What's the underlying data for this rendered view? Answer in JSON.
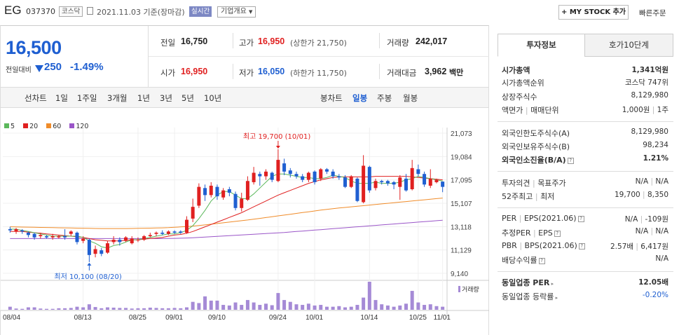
{
  "header": {
    "name": "EG",
    "code": "037370",
    "market": "코스닥",
    "date": "2021.11.03 기준(장마감)",
    "realtime": "실시간",
    "corp_info": "기업개요",
    "mystock": "+ MY STOCK 추가",
    "quick_order": "빠른주문"
  },
  "quote": {
    "price": "16,500",
    "change_label": "전일대비",
    "change": "250",
    "change_pct": "-1.49%",
    "prev_label": "전일",
    "prev": "16,750",
    "high_label": "고가",
    "high": "16,950",
    "upper_limit": "(상한가 21,750)",
    "volume_label": "거래량",
    "volume": "242,017",
    "open_label": "시가",
    "open": "16,950",
    "low_label": "저가",
    "low": "16,050",
    "lower_limit": "(하한가 11,750)",
    "amount_label": "거래대금",
    "amount": "3,962",
    "amount_unit": "백만"
  },
  "tabs": {
    "line_chart": "선차트",
    "periods": [
      "1일",
      "1주일",
      "3개월",
      "1년",
      "3년",
      "5년",
      "10년"
    ],
    "candle_chart": "봉차트",
    "candle_periods": [
      "일봉",
      "주봉",
      "월봉"
    ],
    "active_candle": "일봉"
  },
  "chart_data": {
    "type": "candlestick",
    "ma_legend": [
      {
        "name": "5",
        "color": "#5cb85c"
      },
      {
        "name": "20",
        "color": "#e02020"
      },
      {
        "name": "60",
        "color": "#f08c2a"
      },
      {
        "name": "120",
        "color": "#9a55c8"
      }
    ],
    "y_ticks": [
      "21,073",
      "19,084",
      "17,095",
      "15,107",
      "13,118",
      "11,129",
      "9,140"
    ],
    "ylim": [
      9140,
      21073
    ],
    "x_ticks": [
      "08/04",
      "08/13",
      "08/25",
      "09/01",
      "09/10",
      "09/24",
      "10/01",
      "10/14",
      "10/25",
      "11/01"
    ],
    "annotations": {
      "high": "최고 19,700 (10/01)",
      "low": "최저 10,100 (08/20)"
    },
    "volume_label": "거래량",
    "candles": [
      {
        "o": 12900,
        "c": 12800,
        "h": 13100,
        "l": 12600
      },
      {
        "o": 12700,
        "c": 12900,
        "h": 13000,
        "l": 12500
      },
      {
        "o": 12800,
        "c": 12700,
        "h": 12900,
        "l": 12500
      },
      {
        "o": 12600,
        "c": 12400,
        "h": 12700,
        "l": 12200
      },
      {
        "o": 12500,
        "c": 12200,
        "h": 12600,
        "l": 12000
      },
      {
        "o": 12300,
        "c": 12400,
        "h": 12600,
        "l": 12100
      },
      {
        "o": 12300,
        "c": 12200,
        "h": 12400,
        "l": 12100
      },
      {
        "o": 12200,
        "c": 12300,
        "h": 12500,
        "l": 12000
      },
      {
        "o": 12200,
        "c": 12300,
        "h": 12400,
        "l": 12100
      },
      {
        "o": 12300,
        "c": 12200,
        "h": 12900,
        "l": 12000
      },
      {
        "o": 12500,
        "c": 12700,
        "h": 12800,
        "l": 12300
      },
      {
        "o": 12600,
        "c": 11800,
        "h": 12700,
        "l": 11600
      },
      {
        "o": 11900,
        "c": 12100,
        "h": 12300,
        "l": 11700
      },
      {
        "o": 12000,
        "c": 10700,
        "h": 12100,
        "l": 10100
      },
      {
        "o": 10800,
        "c": 11200,
        "h": 11500,
        "l": 10500
      },
      {
        "o": 11100,
        "c": 10800,
        "h": 11300,
        "l": 10600
      },
      {
        "o": 10900,
        "c": 11700,
        "h": 11900,
        "l": 10800
      },
      {
        "o": 11800,
        "c": 12000,
        "h": 12300,
        "l": 11600
      },
      {
        "o": 12000,
        "c": 11800,
        "h": 12200,
        "l": 11500
      },
      {
        "o": 11900,
        "c": 12200,
        "h": 12300,
        "l": 11800
      },
      {
        "o": 11700,
        "c": 12100,
        "h": 12300,
        "l": 11600
      },
      {
        "o": 12000,
        "c": 12000,
        "h": 12200,
        "l": 11800
      },
      {
        "o": 12000,
        "c": 12300,
        "h": 12400,
        "l": 11900
      },
      {
        "o": 12300,
        "c": 12400,
        "h": 12600,
        "l": 12200
      },
      {
        "o": 12500,
        "c": 12600,
        "h": 12700,
        "l": 12300
      },
      {
        "o": 12600,
        "c": 12500,
        "h": 12800,
        "l": 12400
      },
      {
        "o": 12500,
        "c": 12700,
        "h": 12800,
        "l": 12400
      },
      {
        "o": 12700,
        "c": 12600,
        "h": 12800,
        "l": 12500
      },
      {
        "o": 12700,
        "c": 12600,
        "h": 12800,
        "l": 12500
      },
      {
        "o": 12600,
        "c": 13700,
        "h": 14000,
        "l": 12500
      },
      {
        "o": 13800,
        "c": 14800,
        "h": 15500,
        "l": 13500
      },
      {
        "o": 14900,
        "c": 16500,
        "h": 16800,
        "l": 14700
      },
      {
        "o": 16400,
        "c": 15800,
        "h": 16700,
        "l": 15300
      },
      {
        "o": 15800,
        "c": 16600,
        "h": 16900,
        "l": 15600
      },
      {
        "o": 16500,
        "c": 15700,
        "h": 16700,
        "l": 15400
      },
      {
        "o": 15600,
        "c": 16200,
        "h": 16400,
        "l": 15400
      },
      {
        "o": 16300,
        "c": 16000,
        "h": 16500,
        "l": 15700
      },
      {
        "o": 15900,
        "c": 14700,
        "h": 16100,
        "l": 14500
      },
      {
        "o": 14700,
        "c": 15500,
        "h": 16000,
        "l": 14400
      },
      {
        "o": 15400,
        "c": 17000,
        "h": 17400,
        "l": 15300
      },
      {
        "o": 16900,
        "c": 17700,
        "h": 18200,
        "l": 16700
      },
      {
        "o": 17600,
        "c": 17400,
        "h": 17800,
        "l": 16600
      },
      {
        "o": 17400,
        "c": 17800,
        "h": 18000,
        "l": 17100
      },
      {
        "o": 17700,
        "c": 17100,
        "h": 17800,
        "l": 16900
      },
      {
        "o": 17000,
        "c": 18800,
        "h": 19700,
        "l": 16900
      },
      {
        "o": 18500,
        "c": 17800,
        "h": 18900,
        "l": 17500
      },
      {
        "o": 17900,
        "c": 17600,
        "h": 18100,
        "l": 17300
      },
      {
        "o": 17600,
        "c": 17400,
        "h": 17800,
        "l": 17200
      },
      {
        "o": 17400,
        "c": 17100,
        "h": 17600,
        "l": 16900
      },
      {
        "o": 17100,
        "c": 17700,
        "h": 17800,
        "l": 16900
      },
      {
        "o": 17800,
        "c": 16900,
        "h": 17900,
        "l": 16700
      },
      {
        "o": 17200,
        "c": 18000,
        "h": 18100,
        "l": 17000
      },
      {
        "o": 18000,
        "c": 17800,
        "h": 18100,
        "l": 17600
      },
      {
        "o": 17800,
        "c": 17400,
        "h": 18000,
        "l": 17200
      },
      {
        "o": 17400,
        "c": 17300,
        "h": 17600,
        "l": 17100
      },
      {
        "o": 17300,
        "c": 16500,
        "h": 17500,
        "l": 16400
      },
      {
        "o": 16500,
        "c": 17400,
        "h": 17500,
        "l": 16400
      },
      {
        "o": 17200,
        "c": 15300,
        "h": 17300,
        "l": 15200
      },
      {
        "o": 15200,
        "c": 18300,
        "h": 19200,
        "l": 15100
      },
      {
        "o": 18200,
        "c": 16200,
        "h": 18300,
        "l": 16000
      },
      {
        "o": 16400,
        "c": 17000,
        "h": 17200,
        "l": 16200
      },
      {
        "o": 17000,
        "c": 16900,
        "h": 17100,
        "l": 16700
      },
      {
        "o": 17000,
        "c": 16800,
        "h": 17100,
        "l": 16600
      },
      {
        "o": 16900,
        "c": 16700,
        "h": 17000,
        "l": 16300
      },
      {
        "o": 16500,
        "c": 17300,
        "h": 17500,
        "l": 15400
      },
      {
        "o": 17200,
        "c": 16200,
        "h": 17600,
        "l": 16100
      },
      {
        "o": 16300,
        "c": 18100,
        "h": 18800,
        "l": 16200
      },
      {
        "o": 18000,
        "c": 17600,
        "h": 18400,
        "l": 17400
      },
      {
        "o": 17600,
        "c": 16700,
        "h": 17800,
        "l": 16500
      },
      {
        "o": 16600,
        "c": 17200,
        "h": 18000,
        "l": 16400
      },
      {
        "o": 16900,
        "c": 17100,
        "h": 17200,
        "l": 16800
      },
      {
        "o": 16950,
        "c": 16500,
        "h": 16950,
        "l": 16050
      }
    ],
    "volumes": [
      10,
      4,
      3,
      8,
      8,
      4,
      3,
      3,
      5,
      5,
      6,
      10,
      8,
      18,
      9,
      5,
      8,
      7,
      6,
      6,
      4,
      5,
      5,
      7,
      6,
      5,
      5,
      6,
      5,
      8,
      26,
      22,
      44,
      30,
      30,
      16,
      14,
      24,
      16,
      32,
      24,
      16,
      20,
      15,
      55,
      32,
      26,
      18,
      16,
      20,
      14,
      16,
      10,
      10,
      12,
      8,
      10,
      16,
      40,
      92,
      32,
      18,
      14,
      10,
      14,
      20,
      62,
      24,
      16,
      18,
      12,
      10
    ],
    "ma5": [
      12900,
      12900,
      12800,
      12700,
      12600,
      12500,
      12400,
      12300,
      12300,
      12300,
      12300,
      12300,
      12200,
      11900,
      11700,
      11400,
      11300,
      11500,
      11600,
      11800,
      12000,
      12000,
      12100,
      12200,
      12300,
      12400,
      12500,
      12500,
      12600,
      12800,
      13200,
      13800,
      14500,
      15300,
      15800,
      16100,
      16100,
      15800,
      15500,
      15500,
      15900,
      16400,
      16900,
      17400,
      17600,
      17600,
      17500,
      17400,
      17300,
      17300,
      17200,
      17200,
      17300,
      17500,
      17400,
      17300,
      17000,
      16800,
      16800,
      16800,
      16900,
      16800,
      16800,
      16800,
      16900,
      17100,
      17200,
      17400,
      17300,
      17200,
      17100,
      17000
    ],
    "ma20": [
      12700,
      12700,
      12700,
      12650,
      12600,
      12550,
      12500,
      12450,
      12400,
      12350,
      12300,
      12250,
      12200,
      12100,
      12000,
      11950,
      11900,
      11900,
      11900,
      11950,
      12000,
      12000,
      12050,
      12100,
      12150,
      12200,
      12300,
      12400,
      12450,
      12550,
      12700,
      12900,
      13100,
      13300,
      13500,
      13700,
      13900,
      14100,
      14300,
      14550,
      14800,
      15050,
      15300,
      15550,
      15800,
      16000,
      16200,
      16400,
      16600,
      16800,
      16950,
      17100,
      17200,
      17300,
      17350,
      17350,
      17350,
      17350,
      17350,
      17350,
      17400,
      17400,
      17400,
      17400,
      17400,
      17400,
      17350,
      17300,
      17250,
      17200,
      17150,
      17100
    ],
    "ma60": [
      13100,
      13090,
      13080,
      13070,
      13060,
      13050,
      13040,
      13030,
      13020,
      13010,
      13000,
      12990,
      12980,
      12970,
      12960,
      12950,
      12950,
      12950,
      12950,
      12950,
      12960,
      12970,
      12980,
      12990,
      13000,
      13010,
      13030,
      13060,
      13090,
      13120,
      13160,
      13210,
      13260,
      13320,
      13380,
      13440,
      13500,
      13560,
      13620,
      13680,
      13750,
      13820,
      13890,
      13960,
      14030,
      14100,
      14170,
      14240,
      14310,
      14380,
      14450,
      14520,
      14580,
      14640,
      14700,
      14750,
      14800,
      14850,
      14900,
      14950,
      15000,
      15050,
      15100,
      15150,
      15200,
      15250,
      15300,
      15350,
      15400,
      15450,
      15500,
      15550
    ],
    "ma120": [
      12100,
      12100,
      12100,
      12100,
      12100,
      12100,
      12100,
      12100,
      12100,
      12100,
      12100,
      12100,
      12100,
      12100,
      12100,
      12100,
      12100,
      12100,
      12100,
      12100,
      12100,
      12100,
      12100,
      12100,
      12100,
      12100,
      12110,
      12120,
      12130,
      12150,
      12170,
      12200,
      12230,
      12260,
      12290,
      12320,
      12350,
      12380,
      12410,
      12440,
      12470,
      12500,
      12530,
      12560,
      12590,
      12620,
      12660,
      12700,
      12740,
      12780,
      12820,
      12860,
      12900,
      12940,
      12980,
      13020,
      13060,
      13100,
      13140,
      13180,
      13220,
      13260,
      13300,
      13340,
      13380,
      13420,
      13460,
      13500,
      13540,
      13580,
      13620,
      13660
    ]
  },
  "side": {
    "tab_invest": "투자정보",
    "tab_order": "호가10단계",
    "market_cap_label": "시가총액",
    "market_cap": "1,341억원",
    "rank_label": "시가총액순위",
    "rank": "코스닥 747위",
    "shares_label": "상장주식수",
    "shares": "8,129,980",
    "par_label": "액면가",
    "unit_label": "매매단위",
    "par": "1,000원",
    "unit": "1주",
    "foreign_limit_label": "외국인한도주식수(A)",
    "foreign_limit": "8,129,980",
    "foreign_hold_label": "외국인보유주식수(B)",
    "foreign_hold": "98,234",
    "foreign_ratio_label": "외국인소진율(B/A)",
    "foreign_ratio": "1.21%",
    "opinion_label": "투자의견",
    "target_label": "목표주가",
    "opinion": "N/A",
    "target": "N/A",
    "w52_label": "52주최고",
    "w52_low_label": "최저",
    "w52_high": "19,700",
    "w52_low": "8,350",
    "per_label": "PER",
    "eps_label": "EPS(2021.06)",
    "per": "N/A",
    "eps": "-109원",
    "est_per_label": "추정PER",
    "est_eps_label": "EPS",
    "est_per": "N/A",
    "est_eps": "N/A",
    "pbr_label": "PBR",
    "bps_label": "BPS(2021.06)",
    "pbr": "2.57배",
    "bps": "6,417원",
    "div_label": "배당수익률",
    "div": "N/A",
    "ind_per_label": "동일업종 PER",
    "ind_per": "12.05배",
    "ind_chg_label": "동일업종 등락률",
    "ind_chg": "-0.20%"
  }
}
